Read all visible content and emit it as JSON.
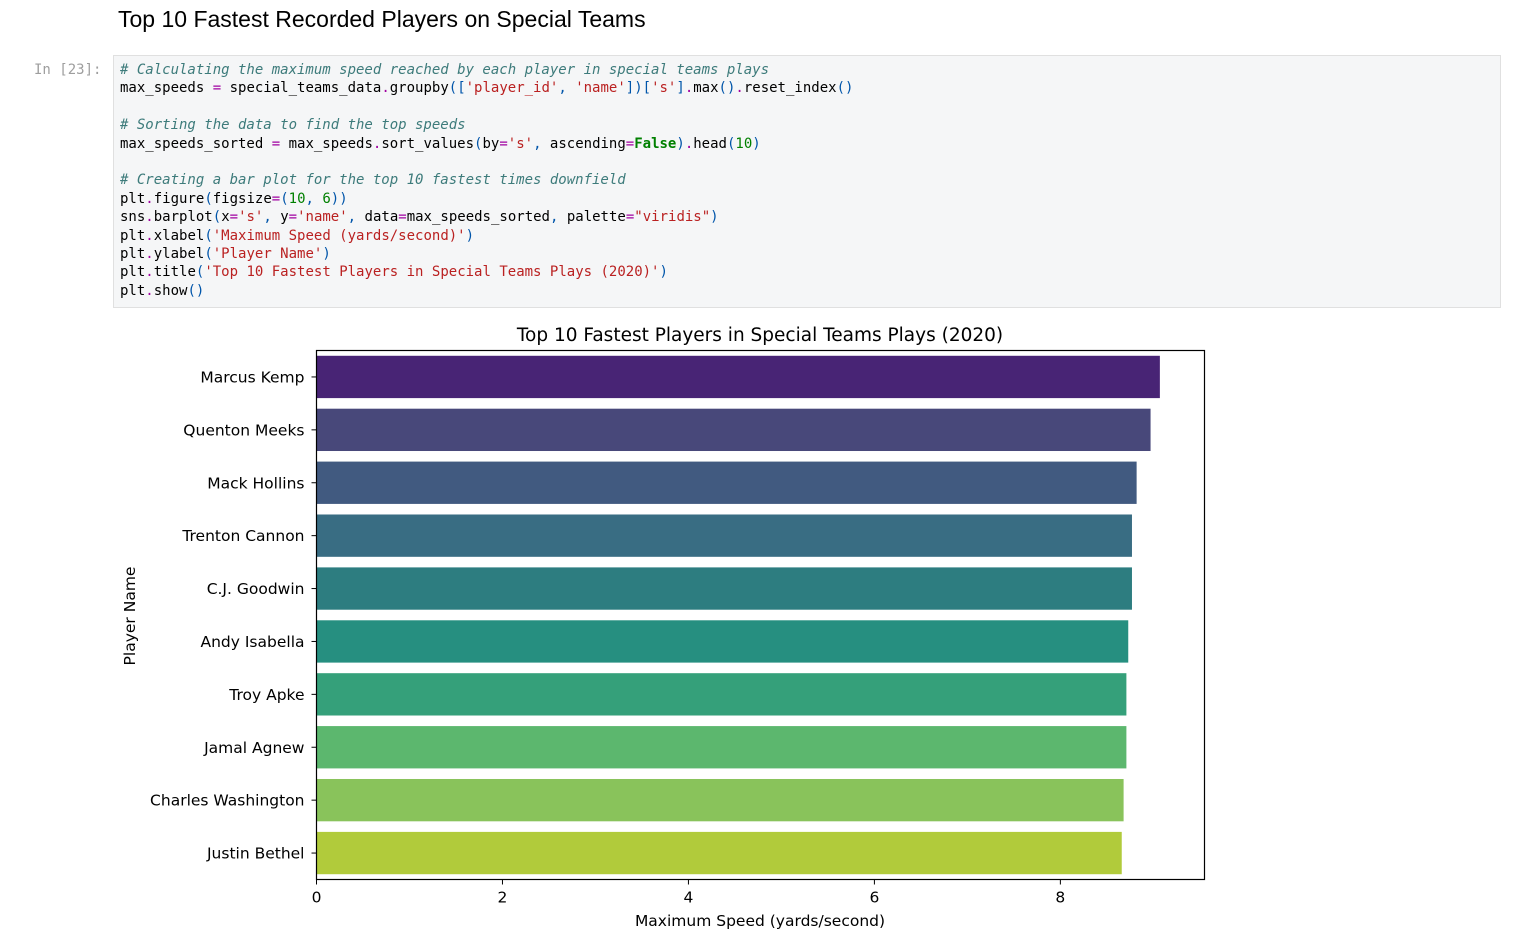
{
  "heading": "Top 10 Fastest Recorded Players on Special Teams",
  "cell": {
    "prompt": "In [23]:",
    "code_lines": [
      [
        {
          "t": "# Calculating the maximum speed reached by each player in special teams plays",
          "c": "com"
        }
      ],
      [
        {
          "t": "max_speeds ",
          "c": ""
        },
        {
          "t": "=",
          "c": "op"
        },
        {
          "t": " special_teams_data",
          "c": ""
        },
        {
          "t": ".",
          "c": "op"
        },
        {
          "t": "groupby",
          "c": ""
        },
        {
          "t": "([",
          "c": "pun"
        },
        {
          "t": "'player_id'",
          "c": "str"
        },
        {
          "t": ", ",
          "c": "pun"
        },
        {
          "t": "'name'",
          "c": "str"
        },
        {
          "t": "])[",
          "c": "pun"
        },
        {
          "t": "'s'",
          "c": "str"
        },
        {
          "t": "]",
          "c": "pun"
        },
        {
          "t": ".",
          "c": "op"
        },
        {
          "t": "max",
          "c": ""
        },
        {
          "t": "()",
          "c": "pun"
        },
        {
          "t": ".",
          "c": "op"
        },
        {
          "t": "reset_index",
          "c": ""
        },
        {
          "t": "()",
          "c": "pun"
        }
      ],
      [],
      [
        {
          "t": "# Sorting the data to find the top speeds",
          "c": "com"
        }
      ],
      [
        {
          "t": "max_speeds_sorted ",
          "c": ""
        },
        {
          "t": "=",
          "c": "op"
        },
        {
          "t": " max_speeds",
          "c": ""
        },
        {
          "t": ".",
          "c": "op"
        },
        {
          "t": "sort_values",
          "c": ""
        },
        {
          "t": "(",
          "c": "pun"
        },
        {
          "t": "by",
          "c": ""
        },
        {
          "t": "=",
          "c": "op"
        },
        {
          "t": "'s'",
          "c": "str"
        },
        {
          "t": ", ",
          "c": "pun"
        },
        {
          "t": "ascending",
          "c": ""
        },
        {
          "t": "=",
          "c": "op"
        },
        {
          "t": "False",
          "c": "kw"
        },
        {
          "t": ")",
          "c": "pun"
        },
        {
          "t": ".",
          "c": "op"
        },
        {
          "t": "head",
          "c": ""
        },
        {
          "t": "(",
          "c": "pun"
        },
        {
          "t": "10",
          "c": "num"
        },
        {
          "t": ")",
          "c": "pun"
        }
      ],
      [],
      [
        {
          "t": "# Creating a bar plot for the top 10 fastest times downfield",
          "c": "com"
        }
      ],
      [
        {
          "t": "plt",
          "c": ""
        },
        {
          "t": ".",
          "c": "op"
        },
        {
          "t": "figure",
          "c": ""
        },
        {
          "t": "(",
          "c": "pun"
        },
        {
          "t": "figsize",
          "c": ""
        },
        {
          "t": "=",
          "c": "op"
        },
        {
          "t": "(",
          "c": "pun"
        },
        {
          "t": "10",
          "c": "num"
        },
        {
          "t": ", ",
          "c": "pun"
        },
        {
          "t": "6",
          "c": "num"
        },
        {
          "t": "))",
          "c": "pun"
        }
      ],
      [
        {
          "t": "sns",
          "c": ""
        },
        {
          "t": ".",
          "c": "op"
        },
        {
          "t": "barplot",
          "c": ""
        },
        {
          "t": "(",
          "c": "pun"
        },
        {
          "t": "x",
          "c": ""
        },
        {
          "t": "=",
          "c": "op"
        },
        {
          "t": "'s'",
          "c": "str"
        },
        {
          "t": ", ",
          "c": "pun"
        },
        {
          "t": "y",
          "c": ""
        },
        {
          "t": "=",
          "c": "op"
        },
        {
          "t": "'name'",
          "c": "str"
        },
        {
          "t": ", ",
          "c": "pun"
        },
        {
          "t": "data",
          "c": ""
        },
        {
          "t": "=",
          "c": "op"
        },
        {
          "t": "max_speeds_sorted",
          "c": ""
        },
        {
          "t": ", ",
          "c": "pun"
        },
        {
          "t": "palette",
          "c": ""
        },
        {
          "t": "=",
          "c": "op"
        },
        {
          "t": "\"viridis\"",
          "c": "str"
        },
        {
          "t": ")",
          "c": "pun"
        }
      ],
      [
        {
          "t": "plt",
          "c": ""
        },
        {
          "t": ".",
          "c": "op"
        },
        {
          "t": "xlabel",
          "c": ""
        },
        {
          "t": "(",
          "c": "pun"
        },
        {
          "t": "'Maximum Speed (yards/second)'",
          "c": "str"
        },
        {
          "t": ")",
          "c": "pun"
        }
      ],
      [
        {
          "t": "plt",
          "c": ""
        },
        {
          "t": ".",
          "c": "op"
        },
        {
          "t": "ylabel",
          "c": ""
        },
        {
          "t": "(",
          "c": "pun"
        },
        {
          "t": "'Player Name'",
          "c": "str"
        },
        {
          "t": ")",
          "c": "pun"
        }
      ],
      [
        {
          "t": "plt",
          "c": ""
        },
        {
          "t": ".",
          "c": "op"
        },
        {
          "t": "title",
          "c": ""
        },
        {
          "t": "(",
          "c": "pun"
        },
        {
          "t": "'Top 10 Fastest Players in Special Teams Plays (2020)'",
          "c": "str"
        },
        {
          "t": ")",
          "c": "pun"
        }
      ],
      [
        {
          "t": "plt",
          "c": ""
        },
        {
          "t": ".",
          "c": "op"
        },
        {
          "t": "show",
          "c": ""
        },
        {
          "t": "()",
          "c": "pun"
        }
      ]
    ]
  },
  "chart_data": {
    "type": "bar",
    "orientation": "horizontal",
    "title": "Top 10 Fastest Players in Special Teams Plays (2020)",
    "xlabel": "Maximum Speed (yards/second)",
    "ylabel": "Player Name",
    "categories": [
      "Marcus Kemp",
      "Quenton Meeks",
      "Mack Hollins",
      "Trenton Cannon",
      "C.J. Goodwin",
      "Andy Isabella",
      "Troy Apke",
      "Jamal Agnew",
      "Charles Washington",
      "Justin Bethel"
    ],
    "values": [
      9.07,
      8.97,
      8.82,
      8.77,
      8.77,
      8.73,
      8.71,
      8.71,
      8.68,
      8.66
    ],
    "colors": [
      "#482475",
      "#48487a",
      "#415a80",
      "#396d83",
      "#2d7d80",
      "#268f80",
      "#35a07a",
      "#5cb76e",
      "#89c35b",
      "#b1cb3b"
    ],
    "xticks": [
      0,
      2,
      4,
      6,
      8
    ],
    "xlim": [
      0,
      9.55
    ],
    "grid": false,
    "legend": false
  }
}
